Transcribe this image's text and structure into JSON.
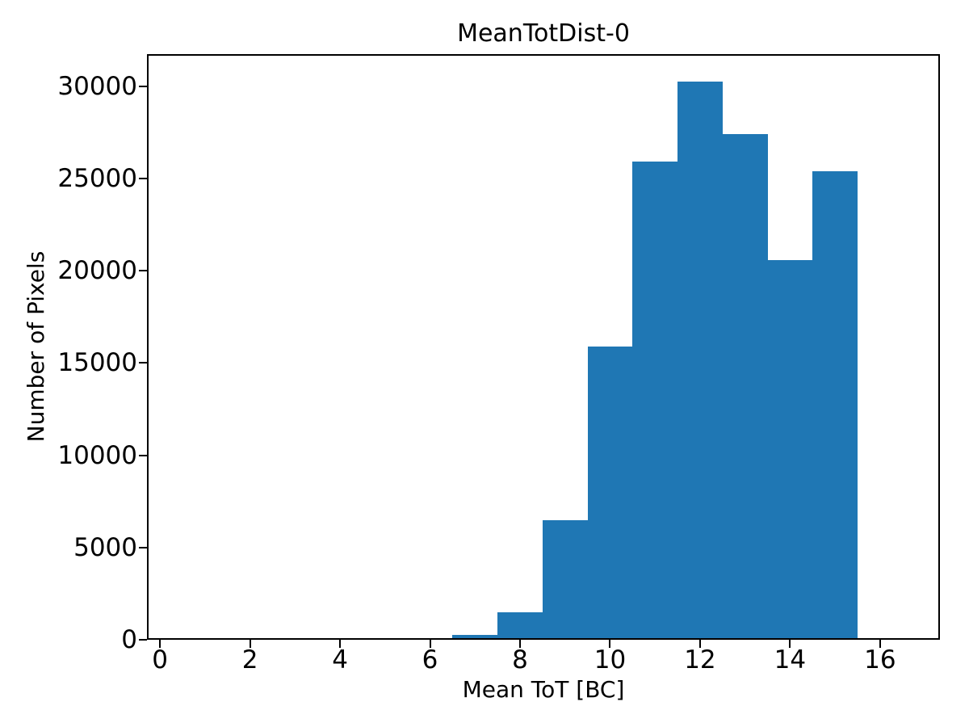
{
  "chart_data": {
    "type": "bar",
    "subtype": "histogram",
    "title": "MeanTotDist-0",
    "xlabel": "Mean ToT [BC]",
    "ylabel": "Number of Pixels",
    "bar_color": "#1f77b4",
    "axis_color": "#000000",
    "background_color": "#ffffff",
    "bin_edges": [
      5.5,
      6.5,
      7.5,
      8.5,
      9.5,
      10.5,
      11.5,
      12.5,
      13.5,
      14.5,
      15.5
    ],
    "counts": [
      110,
      250,
      1500,
      6500,
      15900,
      25900,
      30250,
      27400,
      20570,
      25400
    ],
    "xlim": [
      -0.29,
      17.33
    ],
    "ylim": [
      0,
      31740
    ],
    "x_ticks": [
      0,
      2,
      4,
      6,
      8,
      10,
      12,
      14,
      16
    ],
    "y_ticks": [
      0,
      5000,
      10000,
      15000,
      20000,
      25000,
      30000
    ],
    "grid": false,
    "legend": null
  }
}
